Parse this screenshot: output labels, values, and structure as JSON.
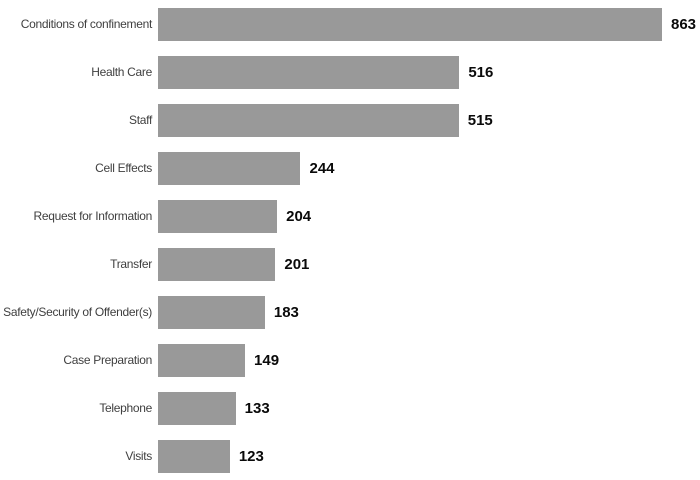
{
  "chart_data": {
    "type": "bar",
    "orientation": "horizontal",
    "categories": [
      "Conditions of confinement",
      "Health Care",
      "Staff",
      "Cell Effects",
      "Request for Information",
      "Transfer",
      "Safety/Security of Offender(s)",
      "Case Preparation",
      "Telephone",
      "Visits"
    ],
    "values": [
      863,
      516,
      515,
      244,
      204,
      201,
      183,
      149,
      133,
      123
    ],
    "value_labels_shown": true,
    "value_label_position": "outside-end",
    "sort_order": "descending",
    "xlim": [
      0,
      863
    ],
    "grid": false,
    "axes_shown": false,
    "legend": "none",
    "colors": {
      "bar": "#999999",
      "category_label": "#3f3f3f",
      "value_label": "#0a0a0a",
      "background": "#ffffff"
    }
  }
}
